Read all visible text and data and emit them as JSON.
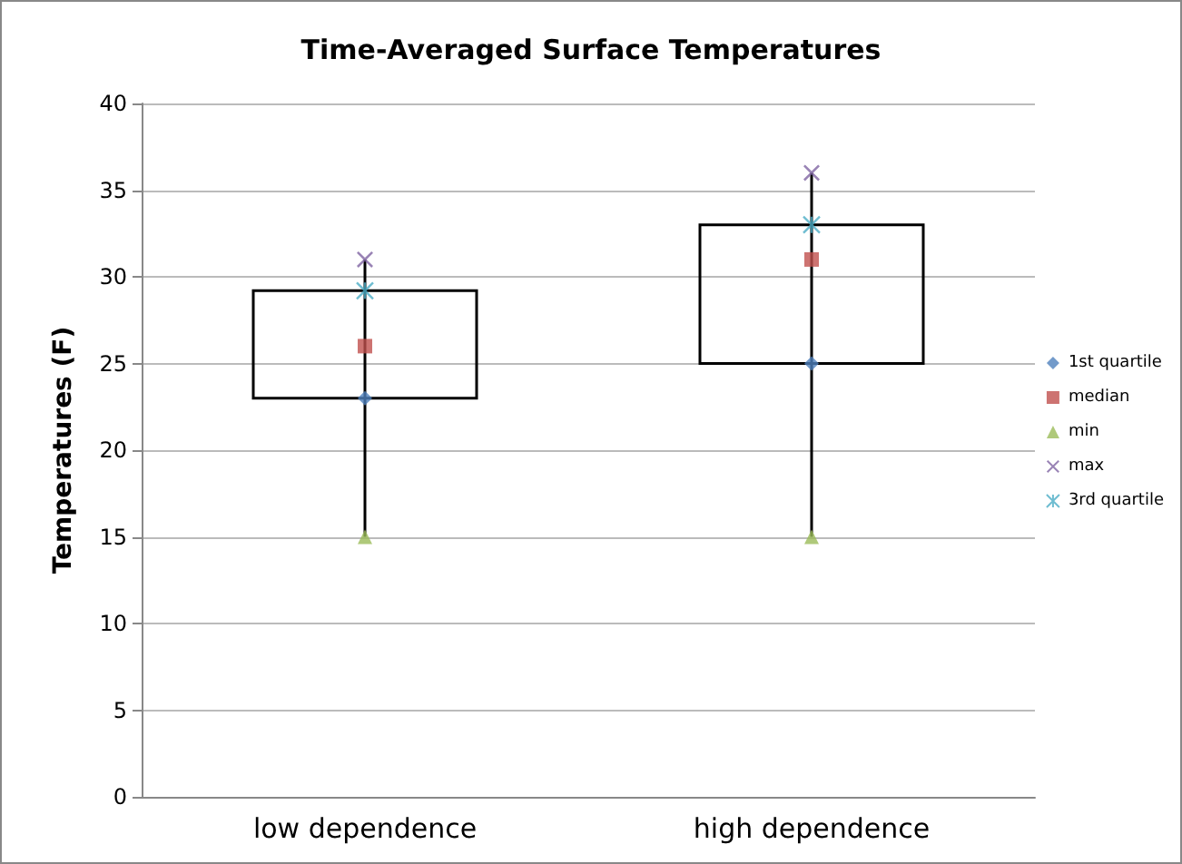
{
  "chart_data": {
    "type": "box",
    "title": "Time-Averaged Surface Temperatures",
    "ylabel": "Temperatures (F)",
    "categories": [
      "low dependence",
      "high dependence"
    ],
    "ylim": [
      0,
      40
    ],
    "yticks": [
      0,
      5,
      10,
      15,
      20,
      25,
      30,
      35,
      40
    ],
    "grid": "y",
    "legend": "right",
    "series": [
      {
        "color": "#000000",
        "boxes": [
          {
            "low": 15,
            "q1": 23,
            "q3": 29.2,
            "high": 31
          },
          {
            "low": 15,
            "q1": 25,
            "q3": 33,
            "high": 36
          }
        ]
      },
      {
        "type": "scatter",
        "name": "1st quartile",
        "color": "#4f81bd",
        "marker": "diamond",
        "x": [
          "low dependence",
          "high dependence"
        ],
        "values": [
          23,
          25
        ]
      },
      {
        "type": "scatter",
        "name": "median",
        "color": "#c0504d",
        "marker": "square",
        "x": [
          "low dependence",
          "high dependence"
        ],
        "values": [
          26,
          31
        ]
      },
      {
        "type": "scatter",
        "name": "min",
        "color": "#9bbb59",
        "marker": "triangle",
        "x": [
          "low dependence",
          "high dependence"
        ],
        "values": [
          15,
          15
        ]
      },
      {
        "type": "scatter",
        "name": "max",
        "color": "#8064a2",
        "marker": "cross",
        "x": [
          "low dependence",
          "high dependence"
        ],
        "values": [
          31,
          36
        ]
      },
      {
        "type": "scatter",
        "name": "3rd quartile",
        "color": "#4bacc6",
        "marker": "star",
        "x": [
          "low dependence",
          "high dependence"
        ],
        "values": [
          29.2,
          33
        ]
      }
    ]
  }
}
